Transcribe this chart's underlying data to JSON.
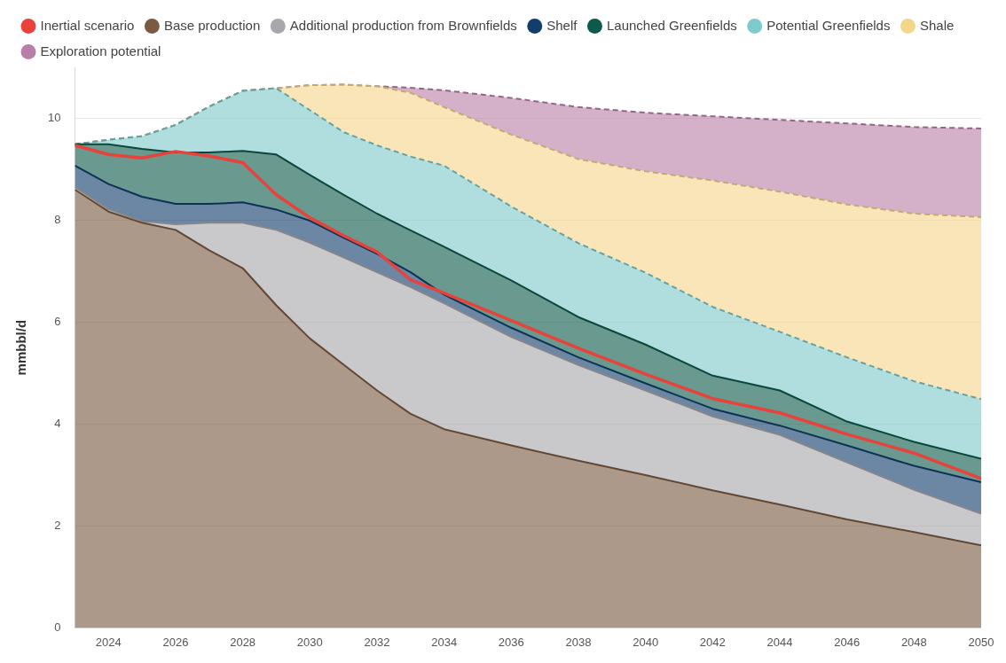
{
  "chart_data": {
    "type": "area",
    "ylabel": "mmbbl/d",
    "stacked": true,
    "legend": "top left",
    "grid": "y",
    "marker": "none",
    "x": [
      2023,
      2024,
      2025,
      2026,
      2027,
      2028,
      2029,
      2030,
      2031,
      2032,
      2033,
      2034,
      2036,
      2038,
      2040,
      2042,
      2044,
      2046,
      2048,
      2050
    ],
    "xlim": [
      2023,
      2050
    ],
    "xticks": [
      2024,
      2026,
      2028,
      2030,
      2032,
      2034,
      2036,
      2038,
      2040,
      2042,
      2044,
      2046,
      2048,
      2050
    ],
    "ylim": [
      0,
      11
    ],
    "yticks": [
      0,
      2,
      4,
      6,
      8,
      10
    ],
    "series": [
      {
        "name": "Inertial scenario",
        "type": "line",
        "color": "#e8423a",
        "line_style": "solid",
        "values": [
          9.47,
          9.29,
          9.22,
          9.35,
          9.26,
          9.13,
          8.5,
          8.05,
          7.7,
          7.38,
          6.83,
          6.57,
          6.03,
          5.49,
          4.98,
          4.5,
          4.22,
          3.8,
          3.43,
          2.93
        ]
      },
      {
        "name": "Base production",
        "color": "#7b5a41",
        "line_style": "solid",
        "values": [
          8.6,
          8.17,
          7.95,
          7.81,
          7.41,
          7.06,
          6.33,
          5.68,
          5.17,
          4.66,
          4.2,
          3.9,
          3.58,
          3.28,
          3.0,
          2.7,
          2.42,
          2.13,
          1.88,
          1.62
        ]
      },
      {
        "name": "Additional production from Brownfields",
        "color": "#a8a8ac",
        "line_style": "solid",
        "values": [
          0.05,
          0.05,
          0.03,
          0.11,
          0.54,
          0.89,
          1.48,
          1.88,
          2.1,
          2.32,
          2.49,
          2.47,
          2.13,
          1.88,
          1.66,
          1.45,
          1.37,
          1.12,
          0.83,
          0.62
        ]
      },
      {
        "name": "Shelf",
        "color": "#123e6b",
        "line_style": "solid",
        "values": [
          0.42,
          0.49,
          0.48,
          0.4,
          0.37,
          0.4,
          0.4,
          0.43,
          0.39,
          0.36,
          0.29,
          0.17,
          0.18,
          0.15,
          0.14,
          0.15,
          0.18,
          0.33,
          0.47,
          0.62
        ]
      },
      {
        "name": "Launched Greenfields",
        "color": "#0d5a4a",
        "line_style": "solid",
        "values": [
          0.42,
          0.78,
          0.94,
          1.01,
          1.01,
          1.01,
          1.08,
          0.9,
          0.84,
          0.79,
          0.82,
          0.94,
          0.93,
          0.79,
          0.76,
          0.65,
          0.69,
          0.47,
          0.47,
          0.46
        ]
      },
      {
        "name": "Potential Greenfields",
        "color": "#7fcaca",
        "line_style": "dashed",
        "values": [
          0,
          0.09,
          0.25,
          0.54,
          0.9,
          1.18,
          1.3,
          1.27,
          1.23,
          1.34,
          1.45,
          1.59,
          1.45,
          1.45,
          1.41,
          1.35,
          1.15,
          1.26,
          1.19,
          1.17
        ]
      },
      {
        "name": "Shale",
        "color": "#f5d58a",
        "line_style": "dashed",
        "values": [
          0,
          0,
          0,
          0,
          0,
          0,
          0,
          0.49,
          0.93,
          1.16,
          1.25,
          1.15,
          1.41,
          1.65,
          1.99,
          2.48,
          2.75,
          3.0,
          3.29,
          3.57
        ]
      },
      {
        "name": "Exploration potential",
        "color": "#b97fa8",
        "line_style": "dashed",
        "values": [
          0,
          0,
          0,
          0,
          0,
          0,
          0,
          0,
          0,
          0,
          0.1,
          0.33,
          0.72,
          1.02,
          1.15,
          1.26,
          1.41,
          1.59,
          1.7,
          1.74
        ]
      }
    ]
  }
}
